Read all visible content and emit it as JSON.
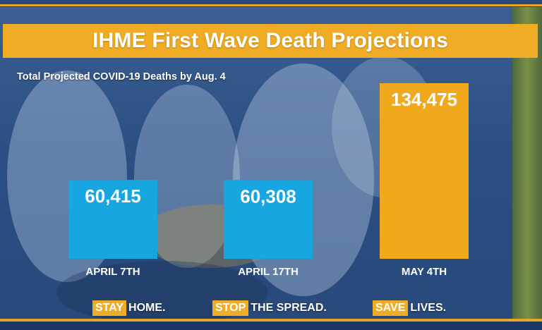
{
  "title": "IHME First Wave Death Projections",
  "subtitle": "Total Projected COVID-19 Deaths by Aug. 4",
  "chart_data": {
    "type": "bar",
    "title": "IHME First Wave Death Projections",
    "subtitle": "Total Projected COVID-19 Deaths by Aug. 4",
    "categories": [
      "APRIL 7TH",
      "APRIL 17TH",
      "MAY 4TH"
    ],
    "values": [
      60415,
      60308,
      134475
    ],
    "value_labels": [
      "60,415",
      "60,308",
      "134,475"
    ],
    "bar_colors": [
      "#17a6e0",
      "#17a6e0",
      "#f0a81c"
    ],
    "xlabel": "",
    "ylabel": "",
    "grid": false,
    "legend": "none"
  },
  "slogans": [
    {
      "highlight": "STAY",
      "text": "HOME."
    },
    {
      "highlight": "STOP",
      "text": "THE SPREAD."
    },
    {
      "highlight": "SAVE",
      "text": "LIVES."
    }
  ],
  "colors": {
    "banner": "#efac24",
    "bar_blue": "#17a6e0",
    "bar_orange": "#f0a81c",
    "background": "#2c4f84"
  }
}
